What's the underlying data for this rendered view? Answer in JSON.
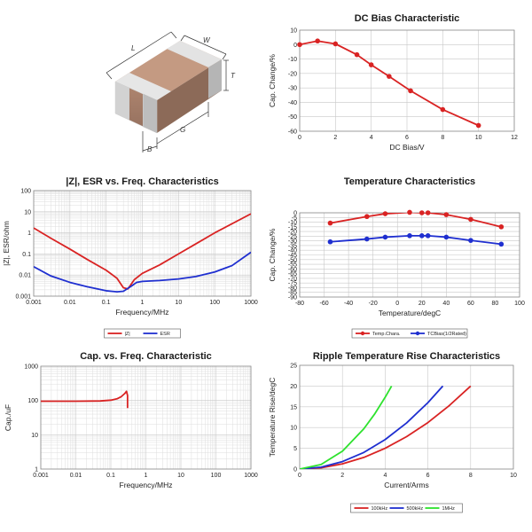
{
  "component": {
    "dimension_labels": [
      "L",
      "W",
      "T",
      "G",
      "B"
    ]
  },
  "chart_data": [
    {
      "id": "dc-bias",
      "type": "line",
      "title": "DC Bias Characteristic",
      "xlabel": "DC Bias/V",
      "ylabel": "Cap. Change/%",
      "xlim": [
        0,
        12
      ],
      "ylim": [
        -60,
        10
      ],
      "xticks": [
        0,
        2,
        4,
        6,
        8,
        10,
        12
      ],
      "yticks": [
        10,
        0,
        -10,
        -20,
        -30,
        -40,
        -50,
        -60
      ],
      "grid": true,
      "series": [
        {
          "name": "Cap. Change",
          "color": "#d92323",
          "markers": true,
          "x": [
            0,
            1,
            2,
            3.2,
            4,
            5,
            6.2,
            8,
            10
          ],
          "y": [
            0,
            2.5,
            0.5,
            -7,
            -14,
            -22,
            -32,
            -45,
            -56
          ]
        }
      ]
    },
    {
      "id": "impedance",
      "type": "line",
      "title": "|Z|, ESR vs. Freq. Characteristics",
      "xlabel": "Frequency/MHz",
      "ylabel": "|Z|, ESR/ohm",
      "xscale": "log",
      "yscale": "log",
      "xlim": [
        0.001,
        1000
      ],
      "ylim": [
        0.001,
        100
      ],
      "xticks": [
        0.001,
        0.01,
        0.1,
        1,
        10,
        100,
        1000
      ],
      "xticklabels": [
        "0.001",
        "0.01",
        "0.1",
        "1",
        "10",
        "100",
        "1000"
      ],
      "yticks": [
        0.001,
        0.01,
        0.1,
        1,
        10,
        100
      ],
      "yticklabels": [
        "0.001",
        "0.01",
        "0.1",
        "1",
        "10",
        "100"
      ],
      "grid": true,
      "legend": "bottom",
      "series": [
        {
          "name": "|Z|",
          "color": "#d92323",
          "x": [
            0.001,
            0.003,
            0.01,
            0.03,
            0.1,
            0.2,
            0.3,
            0.4,
            0.6,
            1,
            3,
            10,
            30,
            100,
            1000
          ],
          "y": [
            1.7,
            0.55,
            0.17,
            0.055,
            0.017,
            0.007,
            0.0025,
            0.0022,
            0.006,
            0.012,
            0.03,
            0.1,
            0.3,
            1,
            8
          ]
        },
        {
          "name": "ESR",
          "color": "#1f2fd0",
          "x": [
            0.001,
            0.003,
            0.01,
            0.03,
            0.1,
            0.2,
            0.3,
            0.5,
            0.7,
            1,
            3,
            10,
            30,
            100,
            300,
            1000
          ],
          "y": [
            0.025,
            0.009,
            0.0045,
            0.0028,
            0.0018,
            0.0016,
            0.0017,
            0.003,
            0.0045,
            0.005,
            0.0055,
            0.0065,
            0.0085,
            0.014,
            0.028,
            0.12
          ]
        }
      ]
    },
    {
      "id": "temperature",
      "type": "line",
      "title": "Temperature Characteristics",
      "xlabel": "Temperature/degC",
      "ylabel": "Cap. Change/%",
      "xlim": [
        -80,
        100
      ],
      "ylim": [
        -90,
        0
      ],
      "xticks": [
        -80,
        -60,
        -40,
        -20,
        0,
        20,
        40,
        60,
        80,
        100
      ],
      "yticks": [
        0,
        -5,
        -10,
        -15,
        -20,
        -25,
        -30,
        -35,
        -40,
        -45,
        -50,
        -55,
        -60,
        -65,
        -70,
        -75,
        -80,
        -85,
        -90
      ],
      "grid": true,
      "legend": "bottom",
      "series": [
        {
          "name": "Temp.Chara.",
          "color": "#d92323",
          "markers": true,
          "x": [
            -55,
            -25,
            -10,
            10,
            20,
            25,
            40,
            60,
            85
          ],
          "y": [
            -11,
            -4,
            -1,
            0.5,
            0,
            0,
            -2,
            -7,
            -15
          ]
        },
        {
          "name": "TCBias(1/2Rated)",
          "color": "#1f2fd0",
          "markers": true,
          "x": [
            -55,
            -25,
            -10,
            10,
            20,
            25,
            40,
            60,
            85
          ],
          "y": [
            -31,
            -28,
            -26,
            -24.5,
            -24.5,
            -24.5,
            -26,
            -29.5,
            -33.5
          ]
        }
      ]
    },
    {
      "id": "cap-freq",
      "type": "line",
      "title": "Cap. vs. Freq. Characteristic",
      "xlabel": "Frequency/MHz",
      "ylabel": "Cap./uF",
      "xscale": "log",
      "yscale": "log",
      "xlim": [
        0.001,
        1000
      ],
      "ylim": [
        1,
        1000
      ],
      "xticks": [
        0.001,
        0.01,
        0.1,
        1,
        10,
        100,
        1000
      ],
      "xticklabels": [
        "0.001",
        "0.01",
        "0.1",
        "1",
        "10",
        "100",
        "1000"
      ],
      "yticks": [
        1,
        10,
        100,
        1000
      ],
      "yticklabels": [
        "1",
        "10",
        "100",
        "1000"
      ],
      "grid": true,
      "series": [
        {
          "name": "Cap.",
          "color": "#d92323",
          "x": [
            0.001,
            0.01,
            0.05,
            0.1,
            0.15,
            0.2,
            0.25,
            0.28,
            0.3,
            0.3
          ],
          "y": [
            95,
            95,
            97,
            102,
            112,
            130,
            160,
            185,
            140,
            60
          ]
        }
      ]
    },
    {
      "id": "ripple",
      "type": "line",
      "title": "Ripple Temperature Rise Characteristics",
      "xlabel": "Current/Arms",
      "ylabel": "Temperature Rise/degC",
      "xlim": [
        0,
        10
      ],
      "ylim": [
        0,
        25
      ],
      "xticks": [
        0,
        2,
        4,
        6,
        8,
        10
      ],
      "yticks": [
        0,
        5,
        10,
        15,
        20,
        25
      ],
      "grid": true,
      "legend": "bottom",
      "series": [
        {
          "name": "100kHz",
          "color": "#d92323",
          "x": [
            0,
            1,
            2,
            3,
            4,
            5,
            6,
            7,
            8
          ],
          "y": [
            0,
            0.3,
            1.25,
            2.8,
            5,
            7.8,
            11.2,
            15.3,
            20
          ]
        },
        {
          "name": "500kHz",
          "color": "#1f2fd0",
          "x": [
            0,
            1,
            2,
            3,
            4,
            5,
            6,
            6.7
          ],
          "y": [
            0,
            0.45,
            1.8,
            4,
            7.1,
            11.1,
            16,
            20
          ]
        },
        {
          "name": "1MHz",
          "color": "#2ee22e",
          "x": [
            0,
            1,
            2,
            3,
            3.5,
            4,
            4.3
          ],
          "y": [
            0,
            1.1,
            4.3,
            9.7,
            13.2,
            17.3,
            20
          ]
        }
      ]
    }
  ]
}
